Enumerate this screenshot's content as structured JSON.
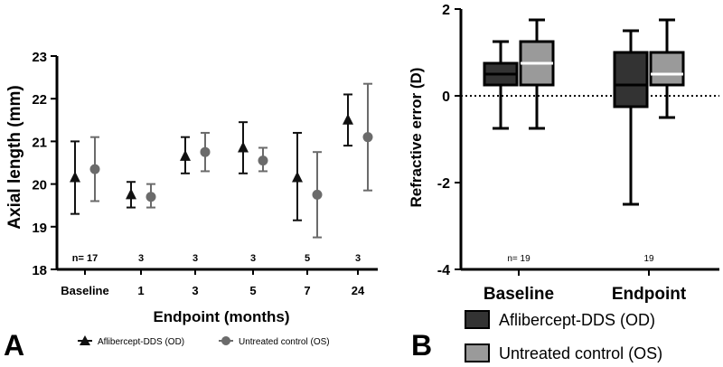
{
  "chart_data": [
    {
      "panel": "A",
      "type": "scatter",
      "title": "",
      "xlabel": "Endpoint (months)",
      "ylabel": "Axial length  (mm)",
      "ylim": [
        18,
        23
      ],
      "yticks": [
        18,
        19,
        20,
        21,
        22,
        23
      ],
      "categories": [
        "Baseline",
        "1",
        "3",
        "5",
        "7",
        "24"
      ],
      "n_labels": [
        "n= 17",
        "3",
        "3",
        "3",
        "5",
        "3"
      ],
      "grid": false,
      "legend_position": "bottom",
      "series": [
        {
          "name": "Aflibercept-DDS (OD)",
          "marker": "triangle",
          "color": "#111111",
          "values": [
            20.15,
            19.75,
            20.65,
            20.85,
            20.15,
            21.5
          ],
          "err_low": [
            19.3,
            19.45,
            20.25,
            20.25,
            19.15,
            20.9
          ],
          "err_high": [
            21.0,
            20.05,
            21.1,
            21.45,
            21.2,
            22.1
          ]
        },
        {
          "name": "Untreated control (OS)",
          "marker": "circle",
          "color": "#6b6b6b",
          "values": [
            20.35,
            19.7,
            20.75,
            20.55,
            19.75,
            21.1
          ],
          "err_low": [
            19.6,
            19.45,
            20.3,
            20.3,
            18.75,
            19.85
          ],
          "err_high": [
            21.1,
            20.0,
            21.2,
            20.85,
            20.75,
            22.35
          ]
        }
      ]
    },
    {
      "panel": "B",
      "type": "box",
      "title": "",
      "xlabel": "",
      "ylabel": "Refractive  error (D)",
      "ylim": [
        -4,
        2
      ],
      "yticks": [
        -4,
        -2,
        0,
        2
      ],
      "ytick_labels": [
        "-4",
        "-2",
        "0",
        "2"
      ],
      "categories": [
        "Baseline",
        "Endpoint"
      ],
      "n_labels": [
        "n= 19",
        "19"
      ],
      "reference_line": 0,
      "grid": false,
      "legend_position": "bottom",
      "series": [
        {
          "name": "Aflibercept-DDS (OD)",
          "color": "#333333",
          "boxes": [
            {
              "min": -0.75,
              "q1": 0.25,
              "median": 0.5,
              "q3": 0.75,
              "max": 1.25
            },
            {
              "min": -2.5,
              "q1": -0.25,
              "median": 0.25,
              "q3": 1.0,
              "max": 1.5
            }
          ]
        },
        {
          "name": "Untreated control (OS)",
          "color": "#9a9a9a",
          "boxes": [
            {
              "min": -0.75,
              "q1": 0.25,
              "median": 0.75,
              "q3": 1.25,
              "max": 1.75
            },
            {
              "min": -0.5,
              "q1": 0.25,
              "median": 0.5,
              "q3": 1.0,
              "max": 1.75
            }
          ]
        }
      ]
    }
  ],
  "panel_labels": {
    "a": "A",
    "b": "B"
  }
}
